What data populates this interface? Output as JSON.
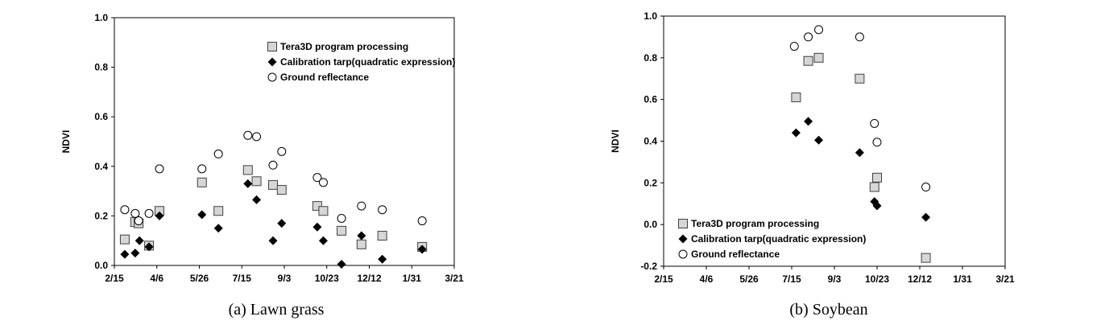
{
  "chart_data": [
    {
      "type": "scatter",
      "caption": "(a)  Lawn  grass",
      "ylabel": "NDVI",
      "xlabel": "",
      "ylim": [
        0.0,
        1.0
      ],
      "yticks": [
        "0.0",
        "0.2",
        "0.4",
        "0.6",
        "0.8",
        "1.0"
      ],
      "xticks": [
        "2/15",
        "4/6",
        "5/26",
        "7/15",
        "9/3",
        "10/23",
        "12/12",
        "1/31",
        "3/21"
      ],
      "legend_position": "top-right",
      "series": [
        {
          "name": "Tera3D program processing",
          "marker": "square",
          "points": [
            [
              "3/10",
              0.175
            ],
            [
              "3/14",
              0.17
            ],
            [
              "4/7",
              0.22
            ],
            [
              "5/26",
              0.335
            ],
            [
              "6/14",
              0.22
            ],
            [
              "7/18",
              0.385
            ],
            [
              "7/28",
              0.34
            ],
            [
              "8/16",
              0.325
            ],
            [
              "8/26",
              0.305
            ],
            [
              "10/6",
              0.24
            ],
            [
              "10/13",
              0.22
            ],
            [
              "11/3",
              0.14
            ],
            [
              "11/26",
              0.085
            ],
            [
              "12/20",
              0.12
            ],
            [
              "2/4",
              0.075
            ],
            [
              "2/27",
              0.105
            ],
            [
              "3/26",
              0.08
            ]
          ]
        },
        {
          "name": "Calibration tarp(quadratic expression)",
          "marker": "diamond",
          "points": [
            [
              "3/10",
              0.05
            ],
            [
              "3/15",
              0.1
            ],
            [
              "4/7",
              0.2
            ],
            [
              "5/26",
              0.205
            ],
            [
              "6/14",
              0.15
            ],
            [
              "7/18",
              0.33
            ],
            [
              "7/28",
              0.265
            ],
            [
              "8/16",
              0.1
            ],
            [
              "8/26",
              0.17
            ],
            [
              "10/6",
              0.155
            ],
            [
              "10/13",
              0.1
            ],
            [
              "11/3",
              0.005
            ],
            [
              "11/26",
              0.12
            ],
            [
              "12/20",
              0.025
            ],
            [
              "2/4",
              0.065
            ],
            [
              "2/27",
              0.045
            ],
            [
              "3/26",
              0.075
            ]
          ]
        },
        {
          "name": "Ground reflectance",
          "marker": "circle",
          "points": [
            [
              "3/10",
              0.21
            ],
            [
              "3/14",
              0.18
            ],
            [
              "4/7",
              0.39
            ],
            [
              "5/26",
              0.39
            ],
            [
              "6/14",
              0.45
            ],
            [
              "7/18",
              0.525
            ],
            [
              "7/28",
              0.52
            ],
            [
              "8/16",
              0.405
            ],
            [
              "8/26",
              0.46
            ],
            [
              "10/6",
              0.355
            ],
            [
              "10/13",
              0.335
            ],
            [
              "11/3",
              0.19
            ],
            [
              "11/26",
              0.24
            ],
            [
              "12/20",
              0.225
            ],
            [
              "2/4",
              0.18
            ],
            [
              "2/27",
              0.225
            ],
            [
              "3/26",
              0.21
            ]
          ]
        }
      ]
    },
    {
      "type": "scatter",
      "caption": "(b)  Soybean",
      "ylabel": "NDVI",
      "xlabel": "",
      "ylim": [
        -0.2,
        1.0
      ],
      "yticks": [
        "-0.2",
        "0.0",
        "0.2",
        "0.4",
        "0.6",
        "0.8",
        "1.0"
      ],
      "xticks": [
        "2/15",
        "4/6",
        "5/26",
        "7/15",
        "9/3",
        "10/23",
        "12/12",
        "1/31",
        "3/21"
      ],
      "legend_position": "bottom-left",
      "series": [
        {
          "name": "Tera3D program processing",
          "marker": "square",
          "points": [
            [
              "7/16",
              0.61
            ],
            [
              "7/30",
              0.785
            ],
            [
              "8/11",
              0.8
            ],
            [
              "9/27",
              0.7
            ],
            [
              "10/14",
              0.18
            ],
            [
              "10/17",
              0.225
            ],
            [
              "12/12",
              -0.16
            ]
          ]
        },
        {
          "name": "Calibration tarp(quadratic expression)",
          "marker": "diamond",
          "points": [
            [
              "7/16",
              0.44
            ],
            [
              "7/30",
              0.495
            ],
            [
              "8/11",
              0.405
            ],
            [
              "9/27",
              0.345
            ],
            [
              "10/14",
              0.11
            ],
            [
              "10/17",
              0.09
            ],
            [
              "12/12",
              0.035
            ]
          ]
        },
        {
          "name": "Ground reflectance",
          "marker": "circle",
          "points": [
            [
              "7/14",
              0.855
            ],
            [
              "7/30",
              0.9
            ],
            [
              "8/11",
              0.935
            ],
            [
              "9/27",
              0.9
            ],
            [
              "10/14",
              0.485
            ],
            [
              "10/17",
              0.395
            ],
            [
              "12/12",
              0.18
            ]
          ]
        }
      ]
    }
  ]
}
